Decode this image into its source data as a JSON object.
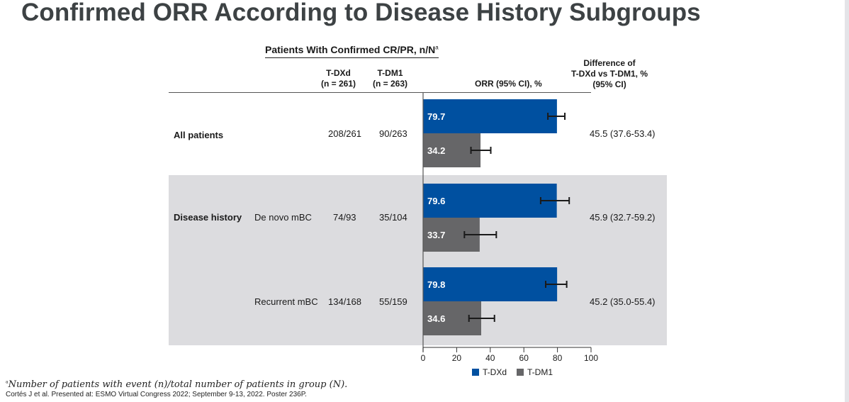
{
  "title": "Confirmed ORR According to Disease History Subgroups",
  "header": {
    "group_label": "Patients With Confirmed CR/PR, n/N",
    "group_sup": "a",
    "col_tdxd": "T-DXd",
    "col_tdxd_n": "(n = 261)",
    "col_tdm1": "T-DM1",
    "col_tdm1_n": "(n = 263)",
    "col_orr": "ORR (95% CI), %",
    "col_diff_1": "Difference of",
    "col_diff_2": "T-DXd vs T-DM1, %",
    "col_diff_3": "(95% CI)"
  },
  "rows": [
    {
      "category": "All patients",
      "subgroup": "",
      "tdxd": "208/261",
      "tdm1": "90/263",
      "diff": "45.5 (37.6-53.4)"
    },
    {
      "category": "Disease history",
      "subgroup": "De novo mBC",
      "tdxd": "74/93",
      "tdm1": "35/104",
      "diff": "45.9 (32.7-59.2)"
    },
    {
      "category": "",
      "subgroup": "Recurrent mBC",
      "tdxd": "134/168",
      "tdm1": "55/159",
      "diff": "45.2 (35.0-55.4)"
    }
  ],
  "colors": {
    "tdxd": "#0050a0",
    "tdm1": "#666668",
    "shade": "#dcdcdf"
  },
  "legend": [
    {
      "label": "T-DXd",
      "color": "#0050a0"
    },
    {
      "label": "T-DM1",
      "color": "#666668"
    }
  ],
  "chart_data": {
    "type": "bar",
    "orientation": "horizontal",
    "title": "ORR (95% CI), %",
    "categories": [
      "All patients",
      "De novo mBC",
      "Recurrent mBC"
    ],
    "series": [
      {
        "name": "T-DXd",
        "values": [
          79.7,
          79.6,
          79.8
        ],
        "ci_low": [
          74.3,
          70.0,
          73.0
        ],
        "ci_high": [
          84.4,
          87.0,
          85.5
        ]
      },
      {
        "name": "T-DM1",
        "values": [
          34.2,
          33.7,
          34.6
        ],
        "ci_low": [
          28.5,
          24.6,
          27.3
        ],
        "ci_high": [
          40.3,
          43.6,
          42.5
        ]
      }
    ],
    "xlim": [
      0,
      100
    ],
    "xticks": [
      0,
      20,
      40,
      60,
      80,
      100
    ],
    "xlabel": "",
    "legend_position": "bottom",
    "grid": false
  },
  "footnotes": {
    "a_sup": "a",
    "a_text": "Number of patients with event (n)/total number of patients in group (N).",
    "citation": "Cortés J et al. Presented at: ESMO Virtual Congress 2022; September 9-13, 2022. Poster 236P."
  }
}
